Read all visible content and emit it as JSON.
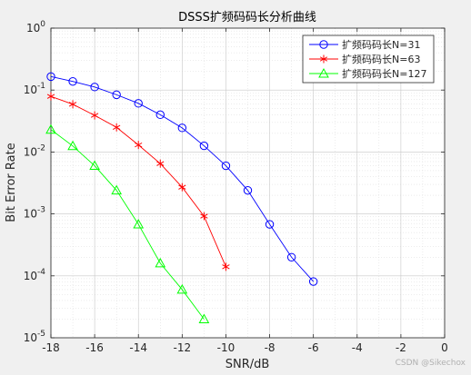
{
  "chart_data": {
    "type": "line",
    "title": "DSSS扩频码码长分析曲线",
    "xlabel": "SNR/dB",
    "ylabel": "Bit Error Rate",
    "xlim": [
      -18,
      0
    ],
    "ylim_log10": [
      -5,
      0
    ],
    "yscale": "log",
    "grid": true,
    "minor_grid": true,
    "legend_position": "top-right",
    "x_ticks": [
      "-18",
      "-16",
      "-14",
      "-12",
      "-10",
      "-8",
      "-6",
      "-4",
      "-2",
      "0"
    ],
    "y_ticks": [
      {
        "base": "10",
        "exp": "0"
      },
      {
        "base": "10",
        "exp": "-1"
      },
      {
        "base": "10",
        "exp": "-2"
      },
      {
        "base": "10",
        "exp": "-3"
      },
      {
        "base": "10",
        "exp": "-4"
      },
      {
        "base": "10",
        "exp": "-5"
      }
    ],
    "series": [
      {
        "name": "扩频码码长N=31",
        "color": "#0000ff",
        "marker": "circle",
        "x": [
          -18,
          -17,
          -16,
          -15,
          -14,
          -13,
          -12,
          -11,
          -10,
          -9,
          -8,
          -7,
          -6
        ],
        "y": [
          0.165,
          0.138,
          0.112,
          0.084,
          0.061,
          0.04,
          0.0245,
          0.0126,
          0.006,
          0.0024,
          0.00068,
          0.0002,
          8.1e-05
        ]
      },
      {
        "name": "扩频码码长N=63",
        "color": "#ff0000",
        "marker": "star",
        "x": [
          -18,
          -17,
          -16,
          -15,
          -14,
          -13,
          -12,
          -11,
          -10
        ],
        "y": [
          0.079,
          0.059,
          0.039,
          0.025,
          0.013,
          0.0065,
          0.0027,
          0.00092,
          0.00014
        ]
      },
      {
        "name": "扩频码码长N=127",
        "color": "#00ff00",
        "marker": "triangle",
        "x": [
          -18,
          -17,
          -16,
          -15,
          -14,
          -13,
          -12,
          -11
        ],
        "y": [
          0.023,
          0.0125,
          0.006,
          0.0024,
          0.00068,
          0.00016,
          6e-05,
          2e-05
        ]
      }
    ]
  },
  "watermark": "CSDN @Sikechox"
}
